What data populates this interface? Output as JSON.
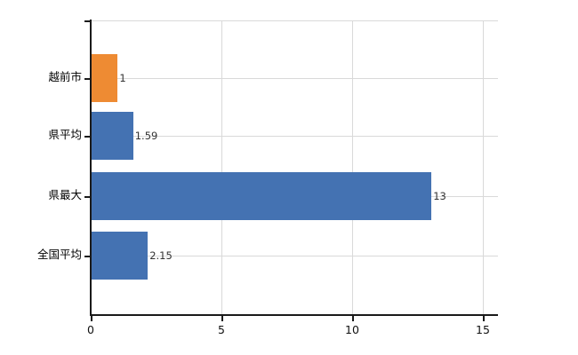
{
  "chart_data": {
    "type": "bar",
    "orientation": "horizontal",
    "title": "",
    "xlabel": "",
    "ylabel": "",
    "categories": [
      "越前市",
      "県平均",
      "県最大",
      "全国平均"
    ],
    "series": [
      {
        "name": "values",
        "values": [
          1,
          1.59,
          13,
          2.15
        ]
      }
    ],
    "value_labels": [
      "1",
      "1.59",
      "13",
      "2.15"
    ],
    "bar_colors": [
      "#ee8b33",
      "#4472b2",
      "#4472b2",
      "#4472b2"
    ],
    "x_tick_labels": [
      "0",
      "5",
      "10",
      "15"
    ],
    "x_tick_values": [
      0,
      5,
      10,
      15
    ],
    "xlim": [
      0,
      15.6
    ],
    "grid": "on",
    "legend_position": "none",
    "colors": {
      "accent_orange": "#ee8b33",
      "accent_blue": "#4472b2",
      "gridline": "#d9d9d9",
      "axis": "#1a1a1a",
      "category_text": "#000000",
      "value_text": "#333333",
      "background": "#ffffff"
    }
  }
}
